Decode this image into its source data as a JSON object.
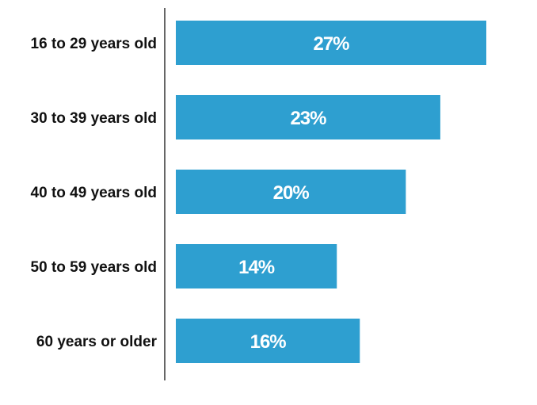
{
  "chart_data": {
    "type": "bar",
    "orientation": "horizontal",
    "categories": [
      "16 to 29 years old",
      "30 to 39 years old",
      "40 to 49 years old",
      "50 to 59 years old",
      "60 years or older"
    ],
    "values": [
      27,
      23,
      20,
      14,
      16
    ],
    "value_labels": [
      "27%",
      "23%",
      "20%",
      "14%",
      "16%"
    ],
    "unit": "%",
    "xlim": [
      0,
      32
    ],
    "grid": false,
    "legend": "none",
    "bar_color": "#2e9fd0",
    "axis_color": "#333333"
  }
}
